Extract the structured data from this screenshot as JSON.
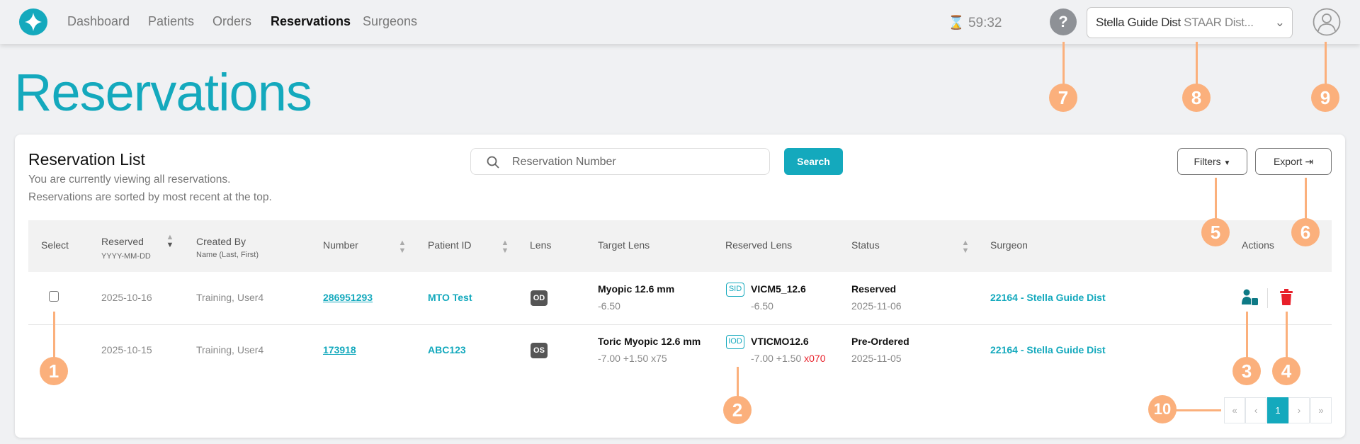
{
  "nav": {
    "items": [
      {
        "label": "Dashboard"
      },
      {
        "label": "Patients"
      },
      {
        "label": "Orders"
      },
      {
        "label": "Reservations",
        "active": true
      },
      {
        "label": "Surgeons"
      }
    ],
    "timer": "59:32",
    "help_label": "?",
    "account": {
      "name": "Stella Guide Dist",
      "sub": "STAAR Dist..."
    }
  },
  "page": {
    "title": "Reservations"
  },
  "card": {
    "title": "Reservation List",
    "subtitle1": "You are currently viewing all reservations.",
    "subtitle2": "Reservations are sorted by most recent at the top.",
    "search_placeholder": "Reservation Number",
    "search_label": "Search",
    "filters_label": "Filters",
    "export_label": "Export"
  },
  "table": {
    "headers": {
      "select": "Select",
      "reserved": "Reserved",
      "reserved_sub": "YYYY-MM-DD",
      "created_by": "Created By",
      "created_by_sub": "Name (Last, First)",
      "number": "Number",
      "patient_id": "Patient ID",
      "lens": "Lens",
      "target_lens": "Target Lens",
      "reserved_lens": "Reserved Lens",
      "status": "Status",
      "surgeon": "Surgeon",
      "actions": "Actions"
    },
    "rows": [
      {
        "reserved": "2025-10-16",
        "created_by": "Training, User4",
        "number": "286951293",
        "patient_id": "MTO Test",
        "lens": "OD",
        "target_lens": "Myopic 12.6 mm",
        "target_power": "-6.50",
        "reserved_badge": "SID",
        "reserved_lens": "VICM5_12.6",
        "reserved_power": "-6.50",
        "reserved_axis": "",
        "status": "Reserved",
        "status_date": "2025-11-06",
        "surgeon": "22164 - Stella Guide Dist",
        "has_actions": true
      },
      {
        "reserved": "2025-10-15",
        "created_by": "Training, User4",
        "number": "173918",
        "patient_id": "ABC123",
        "lens": "OS",
        "target_lens": "Toric Myopic 12.6 mm",
        "target_power": "-7.00 +1.50 x75",
        "reserved_badge": "IOD",
        "reserved_lens": "VTICMO12.6",
        "reserved_power": "-7.00 +1.50",
        "reserved_axis": "x070",
        "status": "Pre-Ordered",
        "status_date": "2025-11-05",
        "surgeon": "22164 - Stella Guide Dist",
        "has_actions": false
      }
    ]
  },
  "pagination": {
    "first": "«",
    "prev": "‹",
    "current": "1",
    "next": "›",
    "last": "»"
  },
  "annotations": [
    "1",
    "2",
    "3",
    "4",
    "5",
    "6",
    "7",
    "8",
    "9",
    "10"
  ],
  "colors": {
    "accent": "#14a9bd",
    "annotation": "#fbb07c",
    "delete": "#e8202a",
    "assign": "#0e7a86"
  }
}
